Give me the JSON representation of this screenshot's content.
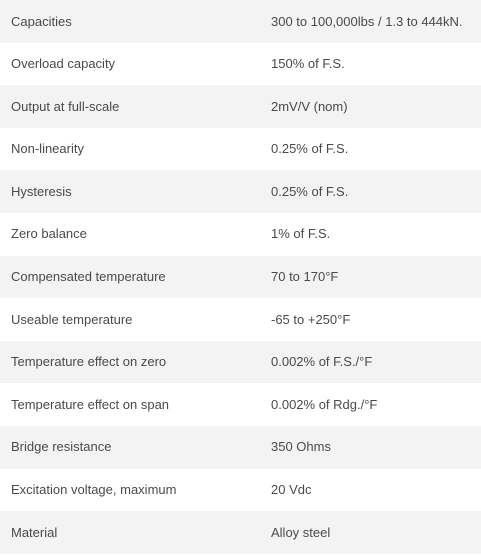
{
  "specs": [
    {
      "label": "Capacities",
      "value": "300 to 100,000lbs / 1.3 to 444kN."
    },
    {
      "label": "Overload capacity",
      "value": "150% of F.S."
    },
    {
      "label": "Output at full-scale",
      "value": "2mV/V (nom)"
    },
    {
      "label": "Non-linearity",
      "value": "0.25% of F.S."
    },
    {
      "label": "Hysteresis",
      "value": "0.25% of F.S."
    },
    {
      "label": "Zero balance",
      "value": "1% of F.S."
    },
    {
      "label": "Compensated temperature",
      "value": "70 to 170°F"
    },
    {
      "label": "Useable temperature",
      "value": "-65 to +250°F"
    },
    {
      "label": "Temperature effect on zero",
      "value": "0.002% of F.S./°F"
    },
    {
      "label": "Temperature effect on span",
      "value": "0.002% of Rdg./°F"
    },
    {
      "label": "Bridge resistance",
      "value": "350 Ohms"
    },
    {
      "label": "Excitation voltage, maximum",
      "value": "20 Vdc"
    },
    {
      "label": "Material",
      "value": "Alloy steel"
    }
  ]
}
